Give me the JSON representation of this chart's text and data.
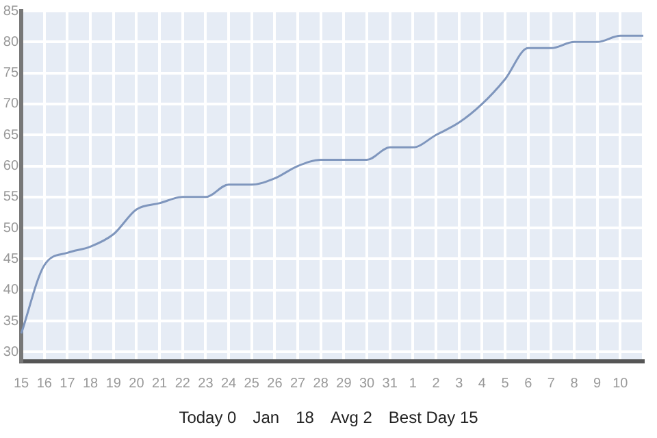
{
  "chart_data": {
    "type": "line",
    "categories": [
      "15",
      "16",
      "17",
      "18",
      "19",
      "20",
      "21",
      "22",
      "23",
      "24",
      "25",
      "26",
      "27",
      "28",
      "29",
      "30",
      "31",
      "1",
      "2",
      "3",
      "4",
      "5",
      "6",
      "7",
      "8",
      "9",
      "10",
      null
    ],
    "series": [
      {
        "color": "#7f96bd",
        "values": [
          33,
          44,
          46,
          47,
          49,
          53,
          54,
          55,
          55,
          57,
          57,
          58,
          60,
          61,
          61,
          61,
          63,
          63,
          65,
          67,
          70,
          74,
          79,
          79,
          80,
          80,
          81,
          81
        ]
      }
    ],
    "ylim": [
      28.5,
      85
    ],
    "yticks": [
      30,
      35,
      40,
      45,
      50,
      55,
      60,
      65,
      70,
      75,
      80,
      85
    ],
    "grid": true,
    "legend": false,
    "marker": "none",
    "annotations": [
      "Today 0",
      "Jan",
      "18",
      "Avg 2",
      "Best Day 15"
    ]
  }
}
